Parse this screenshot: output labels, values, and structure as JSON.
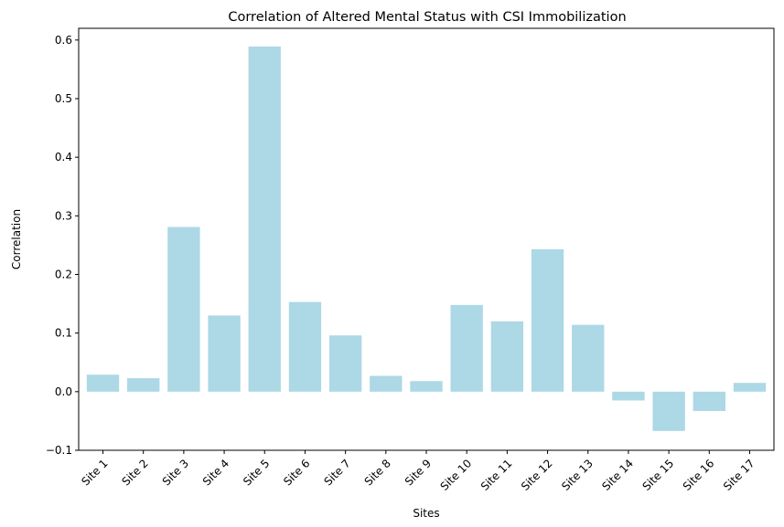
{
  "chart_data": {
    "type": "bar",
    "title": "Correlation of Altered Mental Status with CSI Immobilization",
    "xlabel": "Sites",
    "ylabel": "Correlation",
    "categories": [
      "Site 1",
      "Site 2",
      "Site 3",
      "Site 4",
      "Site 5",
      "Site 6",
      "Site 7",
      "Site 8",
      "Site 9",
      "Site 10",
      "Site 11",
      "Site 12",
      "Site 13",
      "Site 14",
      "Site 15",
      "Site 16",
      "Site 17"
    ],
    "values": [
      0.029,
      0.023,
      0.281,
      0.13,
      0.589,
      0.153,
      0.096,
      0.027,
      0.018,
      0.148,
      0.12,
      0.243,
      0.114,
      -0.015,
      -0.067,
      -0.033,
      0.015
    ],
    "ylim": [
      -0.1,
      0.62
    ],
    "yticks": [
      -0.1,
      0.0,
      0.1,
      0.2,
      0.3,
      0.4,
      0.5,
      0.6
    ],
    "ytick_labels": [
      "−0.1",
      "0.0",
      "0.1",
      "0.2",
      "0.3",
      "0.4",
      "0.5",
      "0.6"
    ],
    "bar_color": "#add8e6",
    "grid": false,
    "legend": "none"
  }
}
